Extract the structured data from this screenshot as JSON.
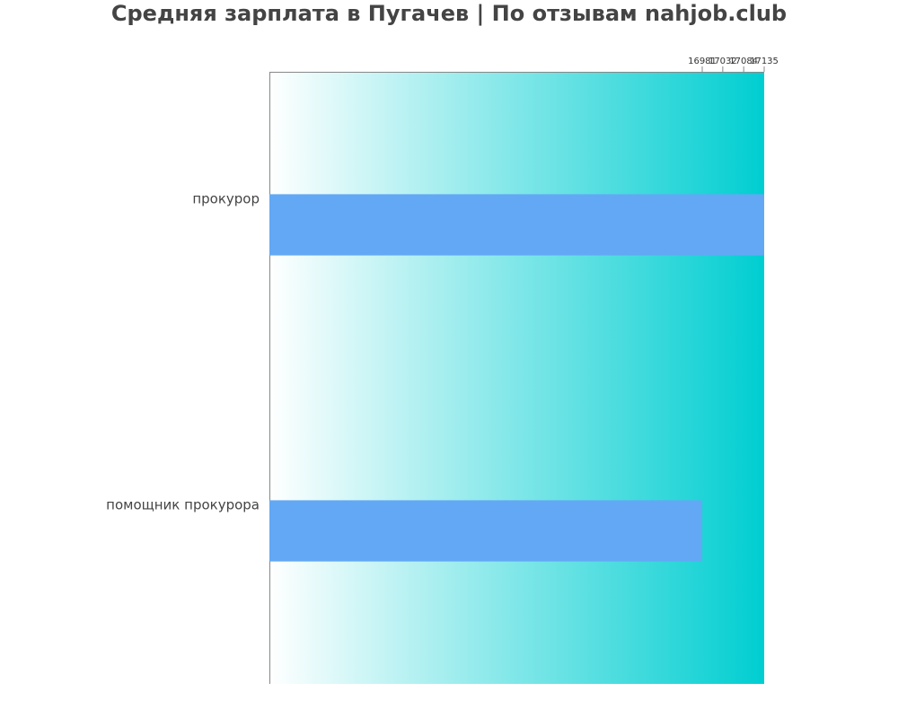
{
  "chart_data": {
    "type": "bar",
    "orientation": "horizontal",
    "title": "Средняя зарплата в Пугачев | По отзывам nahjob.club",
    "categories": [
      "прокурор",
      "помощник прокурора"
    ],
    "values": [
      17135,
      16981
    ],
    "xlim": [
      15905,
      17135
    ],
    "x_ticks": [
      16981,
      17032,
      17084,
      17135
    ],
    "x_tick_labels": [
      "16981",
      "17032",
      "17084",
      "17135"
    ],
    "xaxis_position": "top",
    "grid": false,
    "legend": "none",
    "colors": {
      "bar": "#63a8f5",
      "background_start": "#ffffff",
      "background_end": "#00ced1",
      "text": "#444444",
      "axis": "#888888"
    }
  }
}
